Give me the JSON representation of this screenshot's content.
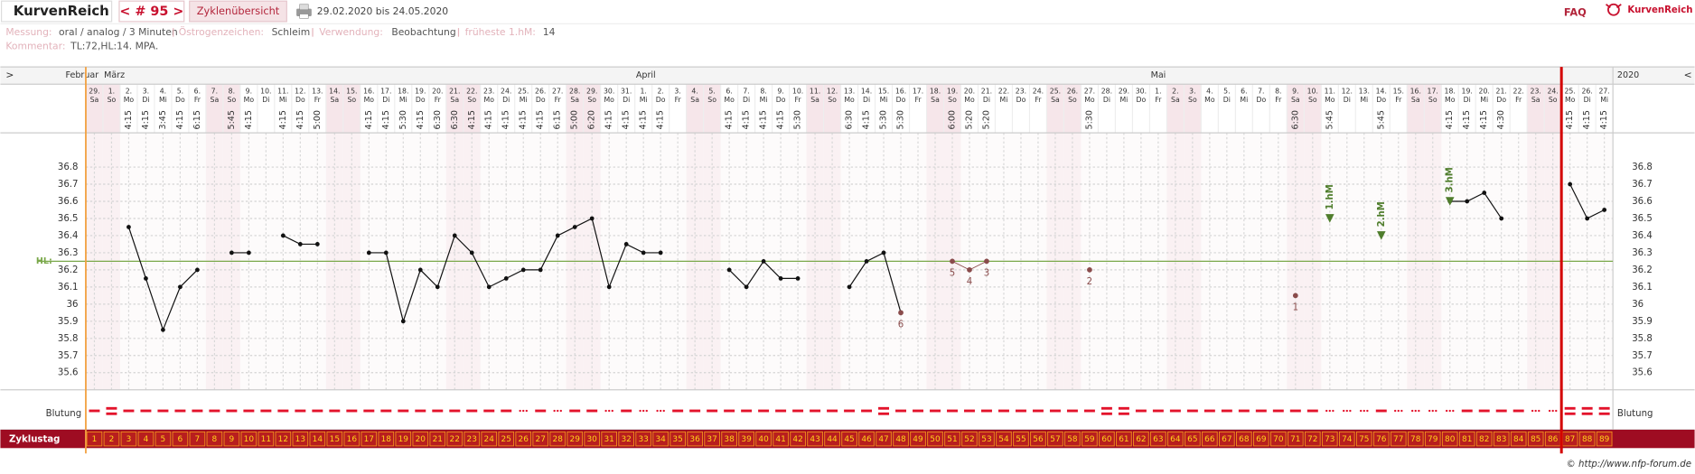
{
  "header": {
    "brand": "KurvenReich",
    "cycle_nav": "< # 95 >",
    "tab": "Zyklenübersicht",
    "date_range": "29.02.2020 bis 24.05.2020",
    "faq": "FAQ",
    "logo": "KurvenReich"
  },
  "info": {
    "measurement_label": "Messung:",
    "measurement": "oral / analog / 3 Minuten",
    "estrogen_label": "Östrogenzeichen:",
    "estrogen": "Schleim",
    "usage_label": "Verwendung:",
    "usage": "Beobachtung",
    "earliest_label": "früheste 1.hM:",
    "earliest": 14,
    "comment_label": "Kommentar:",
    "comment": "TL:72,HL:14. MPA."
  },
  "chart_data": {
    "type": "line",
    "nav_prev": ">",
    "nav_next": "<",
    "year": "2020",
    "months": [
      {
        "label": "Februar",
        "cycle_day": 1
      },
      {
        "label": "März",
        "cycle_day": 2
      },
      {
        "label": "April",
        "cycle_day": 33
      },
      {
        "label": "Mai",
        "cycle_day": 63
      }
    ],
    "shaded_weekdays": [
      "Sa",
      "So"
    ],
    "dates": [
      "29.",
      "1.",
      "2.",
      "3.",
      "4.",
      "5.",
      "6.",
      "7.",
      "8.",
      "9.",
      "10.",
      "11.",
      "12.",
      "13.",
      "14.",
      "15.",
      "16.",
      "17.",
      "18.",
      "19.",
      "20.",
      "21.",
      "22.",
      "23.",
      "24.",
      "25.",
      "26.",
      "27.",
      "28.",
      "29.",
      "30.",
      "31.",
      "1.",
      "2.",
      "3.",
      "4.",
      "5.",
      "6.",
      "7.",
      "8.",
      "9.",
      "10.",
      "11.",
      "12.",
      "13.",
      "14.",
      "15.",
      "16.",
      "17.",
      "18.",
      "19.",
      "20.",
      "21.",
      "22.",
      "23.",
      "24.",
      "25.",
      "26.",
      "27.",
      "28.",
      "29.",
      "30.",
      "1.",
      "2.",
      "3.",
      "4.",
      "5.",
      "6.",
      "7.",
      "8.",
      "9.",
      "10.",
      "11.",
      "12.",
      "13.",
      "14.",
      "15.",
      "16.",
      "17.",
      "18.",
      "19.",
      "20.",
      "21.",
      "22.",
      "23.",
      "24.",
      "25.",
      "26.",
      "27."
    ],
    "weekdays": [
      "Sa",
      "So",
      "Mo",
      "Di",
      "Mi",
      "Do",
      "Fr",
      "Sa",
      "So",
      "Mo",
      "Di",
      "Mi",
      "Do",
      "Fr",
      "Sa",
      "So",
      "Mo",
      "Di",
      "Mi",
      "Do",
      "Fr",
      "Sa",
      "So",
      "Mo",
      "Di",
      "Mi",
      "Do",
      "Fr",
      "Sa",
      "So",
      "Mo",
      "Di",
      "Mi",
      "Do",
      "Fr",
      "Sa",
      "So",
      "Mo",
      "Di",
      "Mi",
      "Do",
      "Fr",
      "Sa",
      "So",
      "Mo",
      "Di",
      "Mi",
      "Do",
      "Fr",
      "Sa",
      "So",
      "Mo",
      "Di",
      "Mi",
      "Do",
      "Fr",
      "Sa",
      "So",
      "Mo",
      "Di",
      "Mi",
      "Do",
      "Fr",
      "Sa",
      "So",
      "Mo",
      "Di",
      "Mi",
      "Do",
      "Fr",
      "Sa",
      "So",
      "Mo",
      "Di",
      "Mi",
      "Do",
      "Fr",
      "Sa",
      "So",
      "Mo",
      "Di",
      "Mi",
      "Do",
      "Fr",
      "Sa",
      "So",
      "Mo",
      "Di",
      "Mi"
    ],
    "times": [
      null,
      null,
      "4:15",
      "4:15",
      "3:45",
      "4:15",
      "6:15",
      null,
      "5:45",
      "4:15",
      null,
      "4:15",
      "4:15",
      "5:00",
      null,
      null,
      "4:15",
      "4:15",
      "5:30",
      "4:15",
      "6:30",
      "6:30",
      "4:15",
      "4:15",
      "4:15",
      "4:15",
      "4:15",
      "6:15",
      "5:00",
      "6:20",
      "4:15",
      "4:15",
      "4:15",
      "4:15",
      null,
      null,
      null,
      "4:15",
      "4:15",
      "4:15",
      "4:15",
      "5:30",
      null,
      null,
      "6:30",
      "4:15",
      "5:30",
      "5:30",
      null,
      null,
      "6:00",
      "5:20",
      "5:20",
      null,
      null,
      null,
      null,
      null,
      "5:30",
      null,
      null,
      null,
      null,
      null,
      null,
      null,
      null,
      null,
      null,
      null,
      "6:30",
      null,
      "5:45",
      null,
      null,
      "5:45",
      null,
      null,
      null,
      "4:15",
      "4:15",
      "4:15",
      "4:30",
      null,
      null,
      null,
      "4:15",
      "4:15",
      "4:15"
    ],
    "values": [
      null,
      null,
      36.45,
      36.15,
      35.85,
      36.1,
      36.2,
      null,
      36.3,
      36.3,
      null,
      36.4,
      36.35,
      36.35,
      null,
      null,
      36.3,
      36.3,
      35.9,
      36.2,
      36.1,
      36.4,
      36.3,
      36.1,
      36.15,
      36.2,
      36.2,
      36.4,
      36.45,
      36.5,
      36.1,
      36.35,
      36.3,
      36.3,
      null,
      null,
      null,
      36.2,
      36.1,
      36.25,
      36.15,
      36.15,
      null,
      null,
      36.1,
      36.25,
      36.3,
      35.95,
      null,
      null,
      36.25,
      36.2,
      36.25,
      null,
      null,
      null,
      null,
      null,
      36.2,
      null,
      null,
      null,
      null,
      null,
      null,
      null,
      null,
      null,
      null,
      null,
      36.05,
      null,
      null,
      null,
      null,
      null,
      null,
      null,
      null,
      36.6,
      36.6,
      36.65,
      36.5,
      null,
      null,
      null,
      36.7,
      36.5,
      36.55
    ],
    "color": "#111111",
    "low_color": "#8a4b4b",
    "ylim": [
      35.5,
      37.0
    ],
    "yticks": [
      35.6,
      35.7,
      35.8,
      35.9,
      36,
      36.1,
      36.2,
      36.3,
      36.4,
      36.5,
      36.6,
      36.7,
      36.8
    ],
    "grid": true,
    "hl": {
      "label": "HL:",
      "value": 36.25,
      "color": "#7aa84a"
    },
    "low_counts": [
      {
        "cycle_day": 48,
        "count": 6
      },
      {
        "cycle_day": 51,
        "count": 5
      },
      {
        "cycle_day": 52,
        "count": 4
      },
      {
        "cycle_day": 53,
        "count": 3
      },
      {
        "cycle_day": 59,
        "count": 2
      },
      {
        "cycle_day": 71,
        "count": 1
      }
    ],
    "hm_markers": [
      {
        "label": "1.hM",
        "cycle_day": 73,
        "value": 36.5
      },
      {
        "label": "2.hM",
        "cycle_day": 76,
        "value": 36.4
      },
      {
        "label": "3.hM",
        "cycle_day": 80,
        "value": 36.6
      }
    ],
    "hm_color": "#4f7d2c",
    "bleeding_label": "Blutung",
    "bleeding_color": "#e3132b",
    "bleeding": [
      2,
      3,
      2,
      2,
      2,
      2,
      2,
      2,
      2,
      2,
      2,
      2,
      2,
      2,
      2,
      2,
      2,
      2,
      2,
      2,
      2,
      2,
      2,
      2,
      2,
      1,
      2,
      1,
      2,
      2,
      1,
      2,
      1,
      1,
      2,
      2,
      2,
      2,
      2,
      2,
      2,
      2,
      2,
      2,
      2,
      2,
      3,
      2,
      2,
      2,
      2,
      2,
      2,
      2,
      2,
      2,
      2,
      2,
      2,
      3,
      3,
      2,
      2,
      2,
      2,
      2,
      2,
      2,
      2,
      2,
      2,
      2,
      1,
      1,
      1,
      2,
      1,
      1,
      1,
      1,
      2,
      2,
      2,
      2,
      1,
      1,
      3,
      3,
      3
    ],
    "cycle_day_label": "Zyklustag",
    "cycle_days": [
      1,
      2,
      3,
      4,
      5,
      6,
      7,
      8,
      9,
      10,
      11,
      12,
      13,
      14,
      15,
      16,
      17,
      18,
      19,
      20,
      21,
      22,
      23,
      24,
      25,
      26,
      27,
      28,
      29,
      30,
      31,
      32,
      33,
      34,
      35,
      36,
      37,
      38,
      39,
      40,
      41,
      42,
      43,
      44,
      45,
      46,
      47,
      48,
      49,
      50,
      51,
      52,
      53,
      54,
      55,
      56,
      57,
      58,
      59,
      60,
      61,
      62,
      63,
      64,
      65,
      66,
      67,
      68,
      69,
      70,
      71,
      72,
      73,
      74,
      75,
      76,
      77,
      78,
      79,
      80,
      81,
      82,
      83,
      84,
      85,
      86,
      87,
      88,
      89
    ],
    "next_cycle_start": 87
  },
  "footer": "© http://www.nfp-forum.de"
}
